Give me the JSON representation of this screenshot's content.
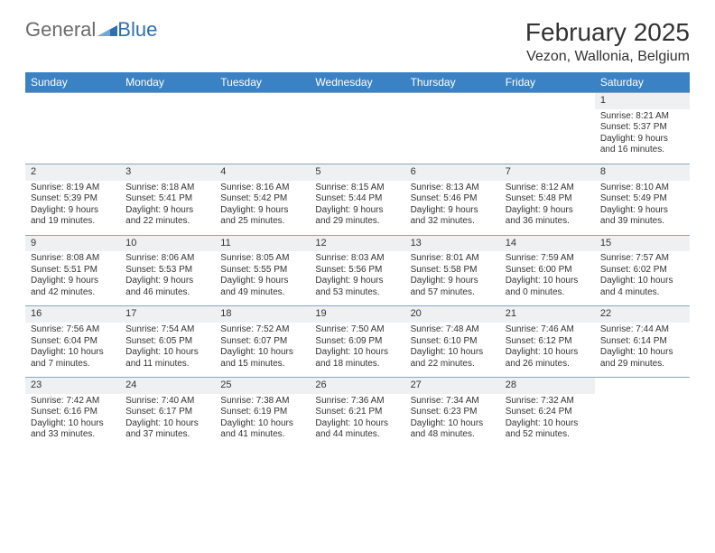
{
  "logo": {
    "text1": "General",
    "text2": "Blue"
  },
  "header": {
    "month": "February 2025",
    "location": "Vezon, Wallonia, Belgium"
  },
  "colors": {
    "header_bg": "#3b82c4",
    "header_text": "#ffffff",
    "daynum_bg": "#eef0f2",
    "border": "#8aa7c2",
    "text": "#333333",
    "logo_gray": "#6b6b6b",
    "logo_blue": "#2f6fb0"
  },
  "columns": [
    "Sunday",
    "Monday",
    "Tuesday",
    "Wednesday",
    "Thursday",
    "Friday",
    "Saturday"
  ],
  "weeks": [
    {
      "nums": [
        "",
        "",
        "",
        "",
        "",
        "",
        "1"
      ],
      "cells": [
        null,
        null,
        null,
        null,
        null,
        null,
        {
          "sunrise": "8:21 AM",
          "sunset": "5:37 PM",
          "daylight": "9 hours and 16 minutes."
        }
      ]
    },
    {
      "nums": [
        "2",
        "3",
        "4",
        "5",
        "6",
        "7",
        "8"
      ],
      "cells": [
        {
          "sunrise": "8:19 AM",
          "sunset": "5:39 PM",
          "daylight": "9 hours and 19 minutes."
        },
        {
          "sunrise": "8:18 AM",
          "sunset": "5:41 PM",
          "daylight": "9 hours and 22 minutes."
        },
        {
          "sunrise": "8:16 AM",
          "sunset": "5:42 PM",
          "daylight": "9 hours and 25 minutes."
        },
        {
          "sunrise": "8:15 AM",
          "sunset": "5:44 PM",
          "daylight": "9 hours and 29 minutes."
        },
        {
          "sunrise": "8:13 AM",
          "sunset": "5:46 PM",
          "daylight": "9 hours and 32 minutes."
        },
        {
          "sunrise": "8:12 AM",
          "sunset": "5:48 PM",
          "daylight": "9 hours and 36 minutes."
        },
        {
          "sunrise": "8:10 AM",
          "sunset": "5:49 PM",
          "daylight": "9 hours and 39 minutes."
        }
      ]
    },
    {
      "nums": [
        "9",
        "10",
        "11",
        "12",
        "13",
        "14",
        "15"
      ],
      "cells": [
        {
          "sunrise": "8:08 AM",
          "sunset": "5:51 PM",
          "daylight": "9 hours and 42 minutes."
        },
        {
          "sunrise": "8:06 AM",
          "sunset": "5:53 PM",
          "daylight": "9 hours and 46 minutes."
        },
        {
          "sunrise": "8:05 AM",
          "sunset": "5:55 PM",
          "daylight": "9 hours and 49 minutes."
        },
        {
          "sunrise": "8:03 AM",
          "sunset": "5:56 PM",
          "daylight": "9 hours and 53 minutes."
        },
        {
          "sunrise": "8:01 AM",
          "sunset": "5:58 PM",
          "daylight": "9 hours and 57 minutes."
        },
        {
          "sunrise": "7:59 AM",
          "sunset": "6:00 PM",
          "daylight": "10 hours and 0 minutes."
        },
        {
          "sunrise": "7:57 AM",
          "sunset": "6:02 PM",
          "daylight": "10 hours and 4 minutes."
        }
      ]
    },
    {
      "nums": [
        "16",
        "17",
        "18",
        "19",
        "20",
        "21",
        "22"
      ],
      "cells": [
        {
          "sunrise": "7:56 AM",
          "sunset": "6:04 PM",
          "daylight": "10 hours and 7 minutes."
        },
        {
          "sunrise": "7:54 AM",
          "sunset": "6:05 PM",
          "daylight": "10 hours and 11 minutes."
        },
        {
          "sunrise": "7:52 AM",
          "sunset": "6:07 PM",
          "daylight": "10 hours and 15 minutes."
        },
        {
          "sunrise": "7:50 AM",
          "sunset": "6:09 PM",
          "daylight": "10 hours and 18 minutes."
        },
        {
          "sunrise": "7:48 AM",
          "sunset": "6:10 PM",
          "daylight": "10 hours and 22 minutes."
        },
        {
          "sunrise": "7:46 AM",
          "sunset": "6:12 PM",
          "daylight": "10 hours and 26 minutes."
        },
        {
          "sunrise": "7:44 AM",
          "sunset": "6:14 PM",
          "daylight": "10 hours and 29 minutes."
        }
      ]
    },
    {
      "nums": [
        "23",
        "24",
        "25",
        "26",
        "27",
        "28",
        ""
      ],
      "cells": [
        {
          "sunrise": "7:42 AM",
          "sunset": "6:16 PM",
          "daylight": "10 hours and 33 minutes."
        },
        {
          "sunrise": "7:40 AM",
          "sunset": "6:17 PM",
          "daylight": "10 hours and 37 minutes."
        },
        {
          "sunrise": "7:38 AM",
          "sunset": "6:19 PM",
          "daylight": "10 hours and 41 minutes."
        },
        {
          "sunrise": "7:36 AM",
          "sunset": "6:21 PM",
          "daylight": "10 hours and 44 minutes."
        },
        {
          "sunrise": "7:34 AM",
          "sunset": "6:23 PM",
          "daylight": "10 hours and 48 minutes."
        },
        {
          "sunrise": "7:32 AM",
          "sunset": "6:24 PM",
          "daylight": "10 hours and 52 minutes."
        },
        null
      ]
    }
  ],
  "labels": {
    "sunrise": "Sunrise:",
    "sunset": "Sunset:",
    "daylight": "Daylight:"
  }
}
